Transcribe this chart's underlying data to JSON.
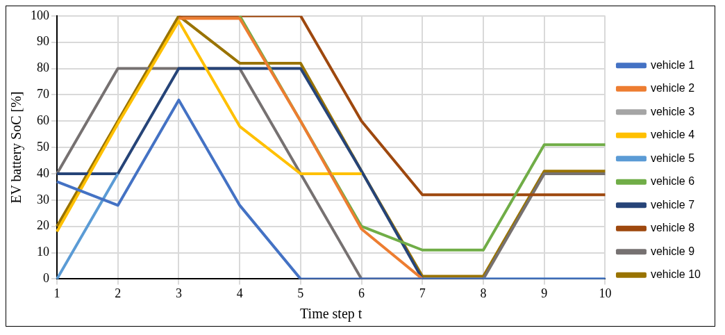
{
  "chart_data": {
    "type": "line",
    "xlabel": "Time step t",
    "ylabel": "EV battery SoC [%]",
    "categories": [
      "1",
      "2",
      "3",
      "4",
      "5",
      "6",
      "7",
      "8",
      "9",
      "10"
    ],
    "ylim": [
      0,
      100
    ],
    "yticks": [
      0,
      10,
      20,
      30,
      40,
      50,
      60,
      70,
      80,
      90,
      100
    ],
    "grid": true,
    "legend": "right",
    "marker": "none",
    "series": [
      {
        "name": "vehicle 1",
        "color": "#4472c4",
        "values": [
          37,
          28,
          68,
          28,
          0,
          0,
          0,
          0,
          0,
          0
        ]
      },
      {
        "name": "vehicle 2",
        "color": "#ed7d31",
        "values": [
          null,
          null,
          99,
          99,
          60,
          19,
          0,
          null,
          null,
          null
        ]
      },
      {
        "name": "vehicle 3",
        "color": "#a5a5a5",
        "values": [
          null,
          null,
          null,
          null,
          null,
          null,
          null,
          null,
          null,
          null
        ]
      },
      {
        "name": "vehicle 4",
        "color": "#ffc000",
        "values": [
          18,
          59,
          98,
          58,
          40,
          40,
          null,
          null,
          null,
          null
        ]
      },
      {
        "name": "vehicle 5",
        "color": "#5b9bd5",
        "values": [
          0,
          40,
          null,
          null,
          null,
          null,
          null,
          0,
          0,
          0
        ]
      },
      {
        "name": "vehicle 6",
        "color": "#70ad47",
        "values": [
          null,
          null,
          null,
          100,
          60,
          20,
          11,
          11,
          51,
          51
        ]
      },
      {
        "name": "vehicle 7",
        "color": "#264478",
        "values": [
          40,
          40,
          80,
          80,
          80,
          41,
          0,
          null,
          null,
          null
        ]
      },
      {
        "name": "vehicle 8",
        "color": "#9e480e",
        "values": [
          null,
          null,
          100,
          100,
          100,
          60,
          32,
          32,
          32,
          32
        ]
      },
      {
        "name": "vehicle 9",
        "color": "#767171",
        "values": [
          40,
          80,
          80,
          80,
          40,
          0,
          0,
          0,
          40,
          40
        ]
      },
      {
        "name": "vehicle 10",
        "color": "#997300",
        "values": [
          20,
          60,
          100,
          82,
          82,
          41,
          1,
          1,
          41,
          41
        ]
      }
    ]
  }
}
